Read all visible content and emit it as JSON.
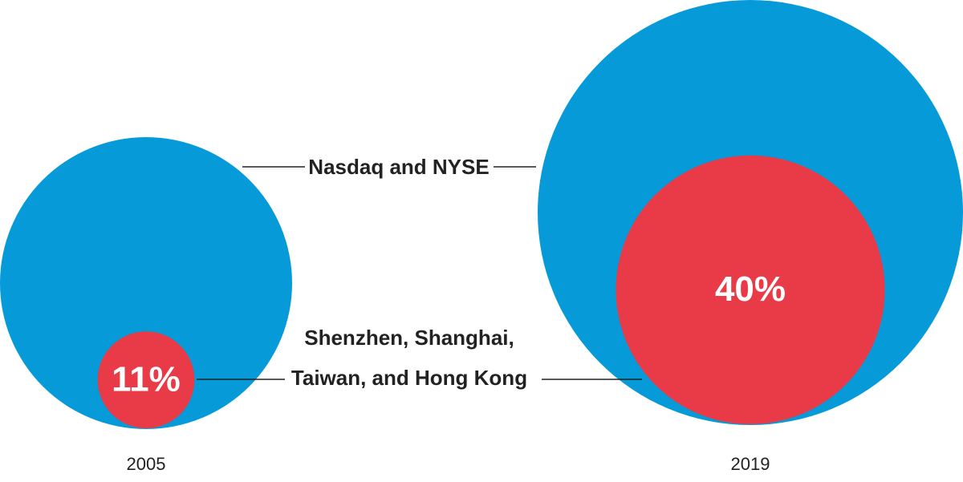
{
  "chart_data": {
    "type": "nested-bubble",
    "categories": [
      "2005",
      "2019"
    ],
    "outer": {
      "name": "Nasdaq and NYSE",
      "color": "#079ad9"
    },
    "series": [
      {
        "name": "Shenzhen, Shanghai,\nTaiwan, and Hong Kong",
        "color": "#e83a47",
        "values": [
          11,
          40
        ],
        "value_labels": [
          "11%",
          "40%"
        ]
      }
    ]
  }
}
